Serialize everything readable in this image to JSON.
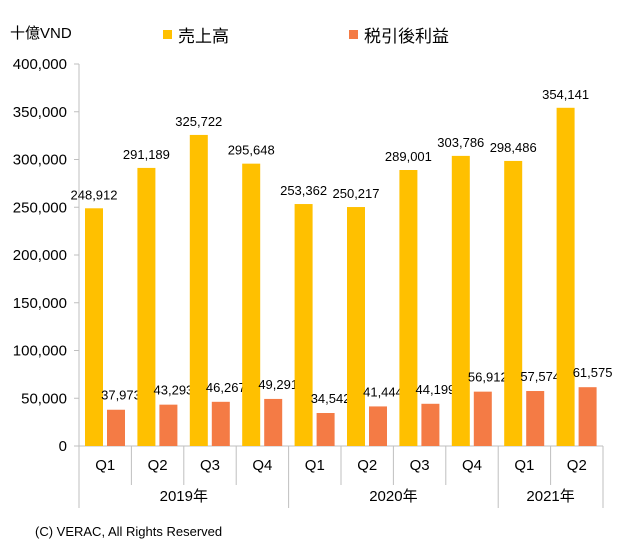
{
  "chart_data": {
    "type": "bar",
    "unit_label": "十億VND",
    "quarters": [
      "Q1",
      "Q2",
      "Q3",
      "Q4",
      "Q1",
      "Q2",
      "Q3",
      "Q4",
      "Q1",
      "Q2"
    ],
    "years": [
      {
        "label": "2019年",
        "count": 4
      },
      {
        "label": "2020年",
        "count": 4
      },
      {
        "label": "2021年",
        "count": 2
      }
    ],
    "series": [
      {
        "name": "売上高",
        "color": "#FFC000",
        "values": [
          248912,
          291189,
          325722,
          295648,
          253362,
          250217,
          289001,
          303786,
          298486,
          354141
        ],
        "labels": [
          "248,912",
          "291,189",
          "325,722",
          "295,648",
          "253,362",
          "250,217",
          "289,001",
          "303,786",
          "298,486",
          "354,141"
        ]
      },
      {
        "name": "税引後利益",
        "color": "#F47B45",
        "values": [
          37973,
          43293,
          46267,
          49291,
          34542,
          41444,
          44199,
          56912,
          57574,
          61575
        ],
        "labels": [
          "37,973",
          "43,293",
          "46,267",
          "49,291",
          "34,542",
          "41,444",
          "44,199",
          "56,912",
          "57,574",
          "61,575"
        ]
      }
    ],
    "ylim": [
      0,
      400000
    ],
    "yticks": [
      0,
      50000,
      100000,
      150000,
      200000,
      250000,
      300000,
      350000,
      400000
    ],
    "ytick_labels": [
      "0",
      "50,000",
      "100,000",
      "150,000",
      "200,000",
      "250,000",
      "300,000",
      "350,000",
      "400,000"
    ],
    "grid": false,
    "legend_position": "top"
  },
  "copyright": "(C) VERAC, All Rights Reserved"
}
